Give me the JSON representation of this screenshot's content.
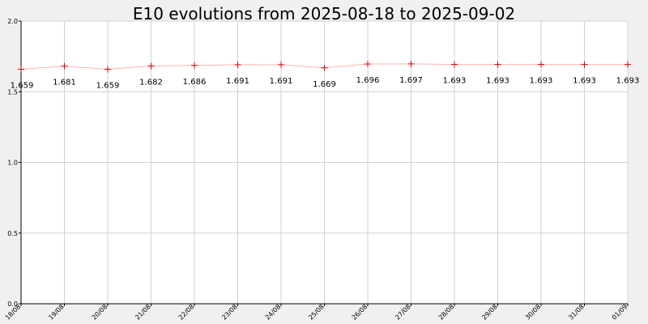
{
  "chart_data": {
    "type": "line",
    "title": "E10 evolutions from 2025-08-18 to 2025-09-02",
    "xlabel": "",
    "ylabel": "",
    "ylim": [
      0.0,
      2.0
    ],
    "yticks": [
      "0.0",
      "0.5",
      "1.0",
      "1.5",
      "2.0"
    ],
    "categories": [
      "18/08",
      "19/08",
      "20/08",
      "21/08",
      "22/08",
      "23/08",
      "24/08",
      "25/08",
      "26/08",
      "27/08",
      "28/08",
      "29/08",
      "30/08",
      "31/08",
      "01/09"
    ],
    "series": [
      {
        "values": [
          1.659,
          1.681,
          1.659,
          1.682,
          1.686,
          1.691,
          1.691,
          1.669,
          1.696,
          1.697,
          1.693,
          1.693,
          1.693,
          1.693,
          1.693
        ],
        "labels": [
          "1.659",
          "1.681",
          "1.659",
          "1.682",
          "1.686",
          "1.691",
          "1.691",
          "1.669",
          "1.696",
          "1.697",
          "1.693",
          "1.693",
          "1.693",
          "1.693",
          "1.693"
        ],
        "color": "#e00000",
        "line_color": "#ffb3b3"
      }
    ],
    "grid": true,
    "background": "#ffffff",
    "page_background": "#f0f0f0"
  }
}
